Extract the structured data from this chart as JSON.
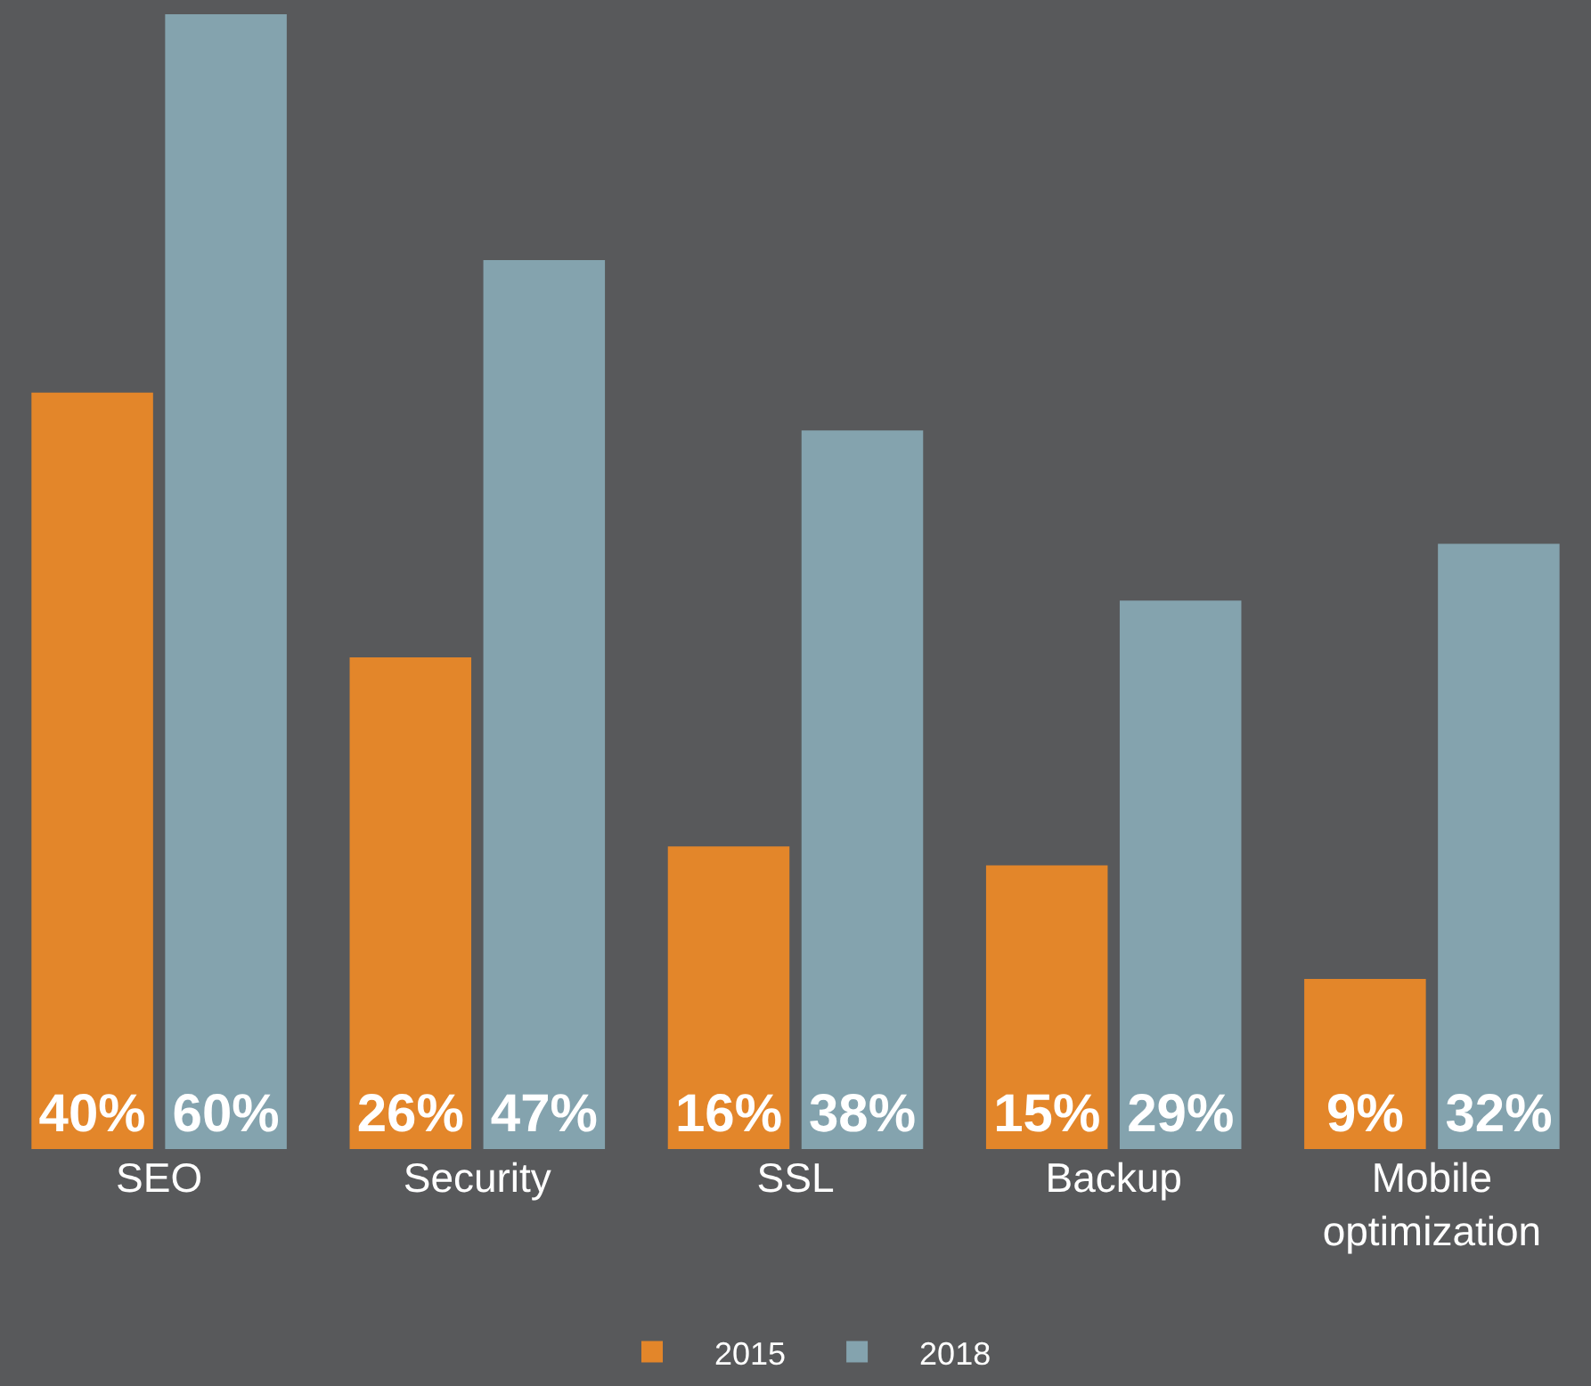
{
  "chart_data": {
    "type": "bar",
    "categories": [
      "SEO",
      "Security",
      "SSL",
      "Backup",
      "Mobile\noptimization"
    ],
    "series": [
      {
        "name": "2015",
        "color": "#e3862a",
        "values": [
          40,
          26,
          16,
          15,
          9
        ],
        "value_labels": [
          "40%",
          "26%",
          "16%",
          "15%",
          "9%"
        ]
      },
      {
        "name": "2018",
        "color": "#84a3ae",
        "values": [
          60,
          47,
          38,
          29,
          32
        ],
        "value_labels": [
          "60%",
          "47%",
          "38%",
          "29%",
          "32%"
        ]
      }
    ],
    "ylim": [
      0,
      60
    ],
    "grid": false,
    "legend": "bottom",
    "tick_labels": "x"
  }
}
